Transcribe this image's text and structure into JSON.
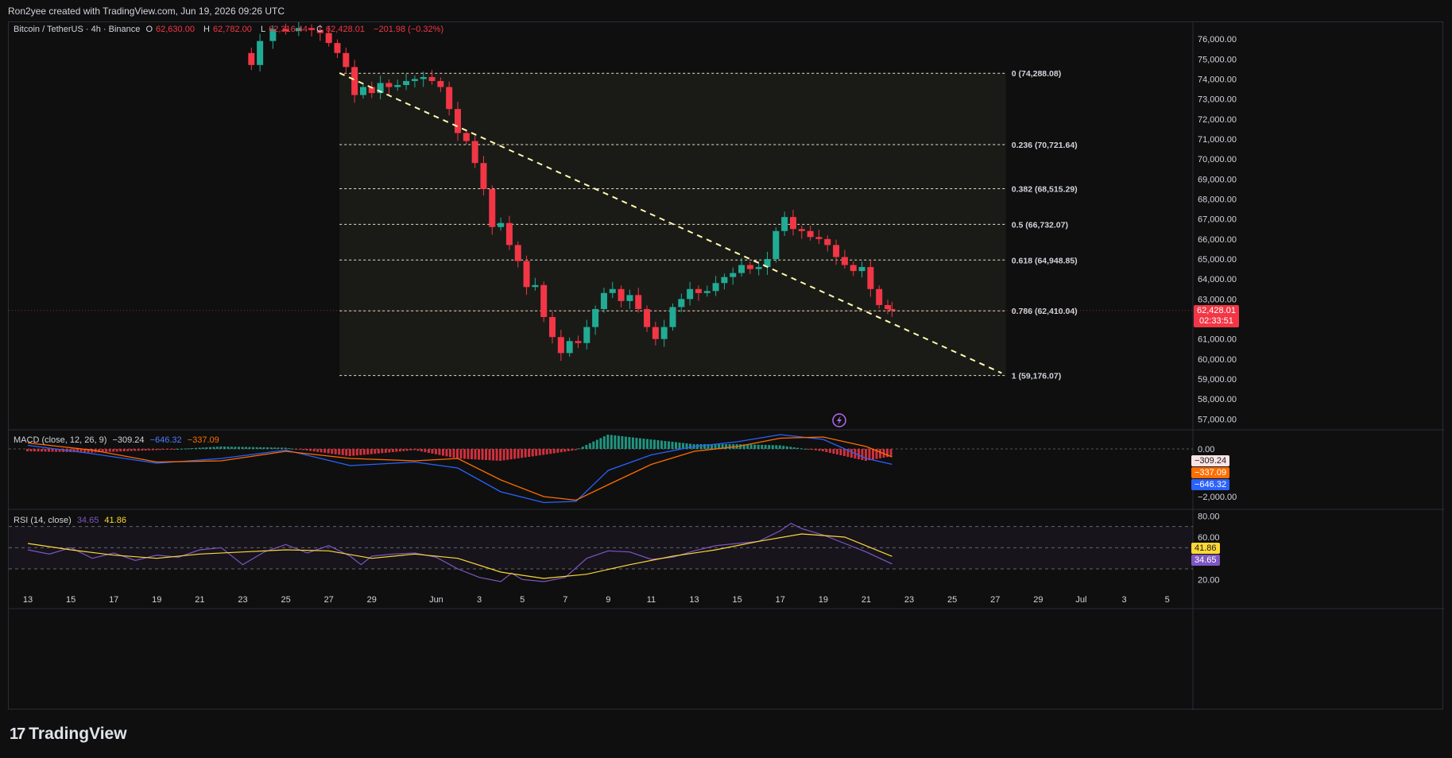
{
  "header": {
    "attribution": "Ron2yee created with TradingView.com, Jun 19, 2026 09:26 UTC"
  },
  "symbol": {
    "title": "Bitcoin / TetherUS · 4h · Binance",
    "open_key": "O",
    "open": "62,630.00",
    "high_key": "H",
    "high": "62,782.00",
    "low_key": "L",
    "low": "62,316.44",
    "close_key": "C",
    "close": "62,428.01",
    "change": "−201.98 (−0.32%)"
  },
  "last_price": {
    "value": "62,428.01",
    "countdown": "02:33:51"
  },
  "colors": {
    "up": "#22ab94",
    "down": "#f23645",
    "fib": "#e6e6c8",
    "trend": "#fffbb0",
    "macd": "#2962ff",
    "signal": "#ff6d00",
    "rsi": "#7e57c2",
    "rsi_ma": "#fdd835",
    "bg": "#0f0f0f",
    "zone": "#1c1d18"
  },
  "macd_legend": {
    "label": "MACD (close, 12, 26, 9)",
    "hist": "−309.24",
    "macd": "−646.32",
    "signal": "−337.09"
  },
  "rsi_legend": {
    "label": "RSI (14, close)",
    "rsi": "34.65",
    "ma": "41.86"
  },
  "footer": {
    "logo_mark": "17",
    "brand": "TradingView"
  },
  "chart_data": {
    "type": "candlestick",
    "interval": "4h",
    "ylim": [
      56500,
      76600
    ],
    "y_ticks": [
      "76,000.00",
      "75,000.00",
      "74,000.00",
      "73,000.00",
      "72,000.00",
      "71,000.00",
      "70,000.00",
      "69,000.00",
      "68,000.00",
      "67,000.00",
      "66,000.00",
      "65,000.00",
      "64,000.00",
      "63,000.00",
      "62,000.00",
      "61,000.00",
      "60,000.00",
      "59,000.00",
      "58,000.00",
      "57,000.00"
    ],
    "y_tick_values": [
      76000,
      75000,
      74000,
      73000,
      72000,
      71000,
      70000,
      69000,
      68000,
      67000,
      66000,
      65000,
      64000,
      63000,
      62000,
      61000,
      60000,
      59000,
      58000,
      57000
    ],
    "x_ticks": [
      "13",
      "15",
      "17",
      "19",
      "21",
      "23",
      "25",
      "27",
      "29",
      "Jun",
      "3",
      "5",
      "7",
      "9",
      "11",
      "13",
      "15",
      "17",
      "19",
      "21",
      "23",
      "25",
      "27",
      "29",
      "Jul",
      "3",
      "5"
    ],
    "x_tick_days": [
      13,
      15,
      17,
      19,
      21,
      23,
      25,
      27,
      29,
      32,
      34,
      36,
      38,
      40,
      42,
      44,
      46,
      48,
      50,
      52,
      54,
      56,
      58,
      60,
      62,
      64,
      66
    ],
    "fib_levels": [
      {
        "ratio": "0",
        "price": 74288.08,
        "label": "0 (74,288.08)"
      },
      {
        "ratio": "0.236",
        "price": 70721.64,
        "label": "0.236 (70,721.64)"
      },
      {
        "ratio": "0.382",
        "price": 68515.29,
        "label": "0.382 (68,515.29)"
      },
      {
        "ratio": "0.5",
        "price": 66732.07,
        "label": "0.5 (66,732.07)"
      },
      {
        "ratio": "0.618",
        "price": 64948.85,
        "label": "0.618 (64,948.85)"
      },
      {
        "ratio": "0.786",
        "price": 62410.04,
        "label": "0.786 (62,410.04)"
      },
      {
        "ratio": "1",
        "price": 59176.07,
        "label": "1 (59,176.07)"
      }
    ],
    "fib_day_range": [
      27.5,
      58.5
    ],
    "trendline": {
      "start_day": 27.5,
      "start_price": 74300,
      "end_day": 58.3,
      "end_price": 59300
    },
    "price_path": [
      [
        23.0,
        75300
      ],
      [
        23.4,
        74700
      ],
      [
        23.8,
        75900
      ],
      [
        24.4,
        76500
      ],
      [
        25.0,
        76400
      ],
      [
        25.6,
        76550
      ],
      [
        26.2,
        76450
      ],
      [
        26.6,
        76300
      ],
      [
        27.0,
        75800
      ],
      [
        27.4,
        75300
      ],
      [
        27.8,
        74600
      ],
      [
        28.2,
        73200
      ],
      [
        28.6,
        73600
      ],
      [
        29.0,
        73300
      ],
      [
        29.4,
        73800
      ],
      [
        29.8,
        73600
      ],
      [
        30.2,
        73700
      ],
      [
        30.6,
        73900
      ],
      [
        31.0,
        74000
      ],
      [
        31.4,
        74100
      ],
      [
        31.8,
        73900
      ],
      [
        32.2,
        73600
      ],
      [
        32.6,
        72500
      ],
      [
        33.0,
        71300
      ],
      [
        33.4,
        70900
      ],
      [
        33.8,
        69800
      ],
      [
        34.2,
        68500
      ],
      [
        34.6,
        66600
      ],
      [
        35.0,
        66800
      ],
      [
        35.4,
        65700
      ],
      [
        35.8,
        64900
      ],
      [
        36.2,
        63600
      ],
      [
        36.6,
        63700
      ],
      [
        37.0,
        62100
      ],
      [
        37.4,
        61100
      ],
      [
        37.8,
        60300
      ],
      [
        38.2,
        60900
      ],
      [
        38.6,
        60800
      ],
      [
        39.0,
        61600
      ],
      [
        39.4,
        62500
      ],
      [
        39.8,
        63300
      ],
      [
        40.2,
        63500
      ],
      [
        40.6,
        62900
      ],
      [
        41.0,
        63200
      ],
      [
        41.4,
        62500
      ],
      [
        41.8,
        61600
      ],
      [
        42.2,
        61000
      ],
      [
        42.6,
        61600
      ],
      [
        43.0,
        62600
      ],
      [
        43.4,
        63000
      ],
      [
        43.8,
        63500
      ],
      [
        44.2,
        63300
      ],
      [
        44.6,
        63400
      ],
      [
        45.0,
        63800
      ],
      [
        45.4,
        64100
      ],
      [
        45.8,
        64300
      ],
      [
        46.2,
        64700
      ],
      [
        46.6,
        64500
      ],
      [
        47.0,
        64600
      ],
      [
        47.4,
        65000
      ],
      [
        47.8,
        66400
      ],
      [
        48.2,
        67100
      ],
      [
        48.6,
        66500
      ],
      [
        49.0,
        66400
      ],
      [
        49.4,
        66100
      ],
      [
        49.8,
        66000
      ],
      [
        50.2,
        65700
      ],
      [
        50.6,
        65100
      ],
      [
        51.0,
        64700
      ],
      [
        51.4,
        64400
      ],
      [
        51.8,
        64600
      ],
      [
        52.2,
        63500
      ],
      [
        52.6,
        62700
      ],
      [
        53.0,
        62500
      ],
      [
        53.2,
        62428
      ]
    ],
    "macd": {
      "range": [
        -2500,
        700
      ],
      "y_ticks": [
        "0.00",
        "−2,000.00"
      ],
      "y_tick_values": [
        0,
        -2000
      ],
      "macd_path": [
        [
          13,
          150
        ],
        [
          16,
          -200
        ],
        [
          19,
          -600
        ],
        [
          22,
          -400
        ],
        [
          25,
          -50
        ],
        [
          28,
          -700
        ],
        [
          31,
          -550
        ],
        [
          33,
          -800
        ],
        [
          35,
          -1800
        ],
        [
          37,
          -2250
        ],
        [
          38.5,
          -2200
        ],
        [
          40,
          -900
        ],
        [
          42,
          -250
        ],
        [
          44,
          100
        ],
        [
          46,
          300
        ],
        [
          48,
          600
        ],
        [
          50,
          400
        ],
        [
          52,
          -400
        ],
        [
          53.2,
          -646
        ]
      ],
      "signal_path": [
        [
          13,
          250
        ],
        [
          16,
          -50
        ],
        [
          19,
          -550
        ],
        [
          22,
          -500
        ],
        [
          25,
          -100
        ],
        [
          28,
          -400
        ],
        [
          31,
          -500
        ],
        [
          33,
          -400
        ],
        [
          35,
          -1300
        ],
        [
          37,
          -2000
        ],
        [
          38.5,
          -2150
        ],
        [
          40,
          -1500
        ],
        [
          42,
          -650
        ],
        [
          44,
          -100
        ],
        [
          46,
          100
        ],
        [
          48,
          450
        ],
        [
          50,
          500
        ],
        [
          52,
          100
        ],
        [
          53.2,
          -337
        ]
      ]
    },
    "rsi": {
      "range": [
        12,
        84
      ],
      "y_ticks": [
        "80.00",
        "60.00",
        "40.00",
        "20.00"
      ],
      "y_tick_values": [
        80,
        60,
        40,
        20
      ],
      "bands": [
        70,
        50,
        30
      ],
      "rsi_path": [
        [
          13,
          48
        ],
        [
          14,
          44
        ],
        [
          15,
          50
        ],
        [
          16,
          40
        ],
        [
          17,
          45
        ],
        [
          18,
          38
        ],
        [
          19,
          43
        ],
        [
          20,
          41
        ],
        [
          21,
          48
        ],
        [
          22,
          50
        ],
        [
          23,
          34
        ],
        [
          24,
          46
        ],
        [
          25,
          53
        ],
        [
          26,
          45
        ],
        [
          27,
          52
        ],
        [
          28,
          42
        ],
        [
          28.5,
          34
        ],
        [
          29,
          42
        ],
        [
          30,
          44
        ],
        [
          31,
          45
        ],
        [
          32,
          41
        ],
        [
          33,
          30
        ],
        [
          34,
          22
        ],
        [
          35,
          18
        ],
        [
          35.5,
          26
        ],
        [
          36,
          20
        ],
        [
          37,
          18
        ],
        [
          38,
          22
        ],
        [
          39,
          40
        ],
        [
          40,
          47
        ],
        [
          41,
          46
        ],
        [
          42,
          39
        ],
        [
          43,
          41
        ],
        [
          44,
          47
        ],
        [
          45,
          52
        ],
        [
          46,
          54
        ],
        [
          47,
          56
        ],
        [
          48,
          66
        ],
        [
          48.5,
          73
        ],
        [
          49,
          68
        ],
        [
          50,
          62
        ],
        [
          51,
          54
        ],
        [
          52,
          46
        ],
        [
          53.2,
          34.65
        ]
      ],
      "ma_path": [
        [
          13,
          54
        ],
        [
          15,
          48
        ],
        [
          17,
          43
        ],
        [
          19,
          40
        ],
        [
          21,
          44
        ],
        [
          23,
          46
        ],
        [
          25,
          48
        ],
        [
          27,
          47
        ],
        [
          29,
          40
        ],
        [
          31,
          44
        ],
        [
          33,
          40
        ],
        [
          35,
          27
        ],
        [
          37,
          21
        ],
        [
          39,
          25
        ],
        [
          41,
          34
        ],
        [
          43,
          42
        ],
        [
          45,
          48
        ],
        [
          47,
          56
        ],
        [
          49,
          63
        ],
        [
          51,
          60
        ],
        [
          53.2,
          41.86
        ]
      ]
    }
  }
}
